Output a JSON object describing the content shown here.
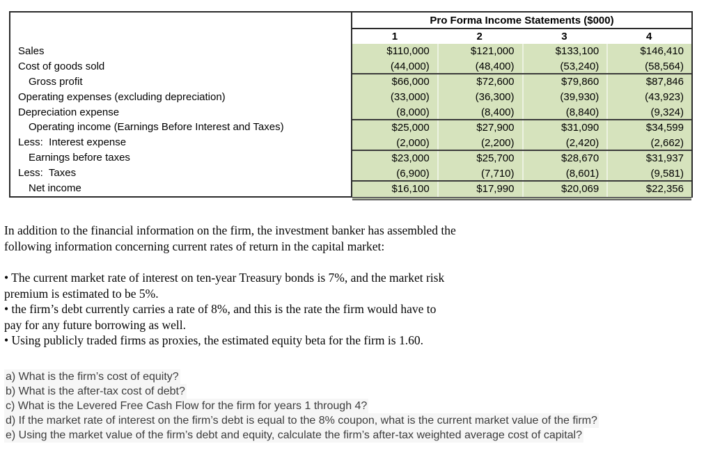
{
  "table": {
    "title": "Pro Forma Income Statements ($000)",
    "fill_color": "#d6e3bd",
    "col_headers": [
      "1",
      "2",
      "3",
      "4"
    ],
    "rows": [
      {
        "label": "Sales",
        "values": [
          "$110,000",
          "$121,000",
          "$133,100",
          "$146,410"
        ]
      },
      {
        "label": "Cost of goods sold",
        "values": [
          "(44,000)",
          "(48,400)",
          "(53,240)",
          "(58,564)"
        ]
      },
      {
        "label": "Gross profit",
        "values": [
          "$66,000",
          "$72,600",
          "$79,860",
          "$87,846"
        ]
      },
      {
        "label": "Operating expenses (excluding depreciation)",
        "values": [
          "(33,000)",
          "(36,300)",
          "(39,930)",
          "(43,923)"
        ]
      },
      {
        "label": "Depreciation expense",
        "values": [
          "(8,000)",
          "(8,400)",
          "(8,840)",
          "(9,324)"
        ]
      },
      {
        "label": "Operating income (Earnings Before Interest and Taxes)",
        "values": [
          "$25,000",
          "$27,900",
          "$31,090",
          "$34,599"
        ]
      },
      {
        "label": "Less:  Interest expense",
        "values": [
          "(2,000)",
          "(2,200)",
          "(2,420)",
          "(2,662)"
        ]
      },
      {
        "label": "Earnings before taxes",
        "values": [
          "$23,000",
          "$25,700",
          "$28,670",
          "$31,937"
        ]
      },
      {
        "label": "Less:  Taxes",
        "values": [
          "(6,900)",
          "(7,710)",
          "(8,601)",
          "(9,581)"
        ]
      },
      {
        "label": "Net income",
        "values": [
          "$16,100",
          "$17,990",
          "$20,069",
          "$22,356"
        ]
      }
    ]
  },
  "intro": {
    "lines": [
      "In addition to the financial information on the firm, the investment banker has assembled the",
      "following information concerning current rates of return in the capital market:"
    ]
  },
  "bullets": {
    "lines": [
      "• The current market rate of interest on ten-year Treasury bonds is 7%, and the market risk",
      "premium is estimated to be 5%.",
      "• the firm’s debt currently carries a rate of 8%, and this is the rate the firm would have to",
      "pay for any future borrowing as well.",
      "• Using publicly traded firms as proxies, the estimated equity beta for the firm is 1.60."
    ]
  },
  "questions": {
    "items": [
      "a) What is the firm’s cost of equity?",
      "b) What is the after-tax cost of debt?",
      "c) What is the Levered Free Cash Flow for the firm for years 1 through 4?",
      "d) If the market rate of interest on the firm’s debt is equal to the 8% coupon, what is the current market value of the firm?",
      "e) Using the market value of the firm’s debt and equity, calculate the firm’s after-tax weighted average cost of capital?"
    ]
  }
}
